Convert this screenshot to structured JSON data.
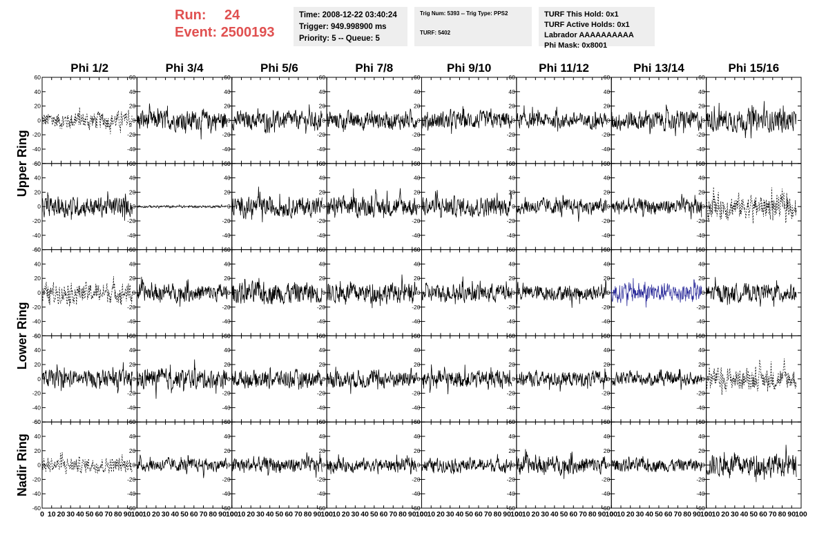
{
  "header": {
    "run_label": "Run:",
    "run_value": "24",
    "event_label": "Event:",
    "event_value": "2500193",
    "time": "Time: 2008-12-22 03:40:24",
    "trigger": "Trigger: 949.998900 ms",
    "priority": "Priority: 5 -- Queue: 5",
    "trig_num": "Trig Num: 5393 -- Trig Type: PPS2",
    "turf": "TURF: 5402",
    "turf_hold": "TURF This Hold: 0x1",
    "turf_active": "TURF Active Holds: 0x1",
    "labrador": "Labrador AAAAAAAAAA",
    "phi_mask": "Phi Mask: 0x8001"
  },
  "colors": {
    "run_text": "#e05050",
    "info_bg": "#eeeeee",
    "trace": "#000000",
    "highlight_trace": "#2b2b9a"
  },
  "chart_data": {
    "type": "line",
    "columns": [
      "Phi 1/2",
      "Phi 3/4",
      "Phi 5/6",
      "Phi 7/8",
      "Phi 9/10",
      "Phi 11/12",
      "Phi 13/14",
      "Phi 15/16"
    ],
    "ring_labels": [
      "Upper Ring",
      "Lower Ring",
      "Nadir Ring"
    ],
    "rows": 5,
    "ylim": [
      -60,
      60
    ],
    "yticks": [
      "60",
      "40",
      "20",
      "0",
      "-20",
      "-40",
      "-60"
    ],
    "xlim": [
      0,
      100
    ],
    "xticks": [
      "0",
      "10",
      "20",
      "30",
      "40",
      "50",
      "60",
      "70",
      "80",
      "90",
      "100"
    ],
    "panel_amplitude": [
      [
        16,
        18,
        16,
        16,
        16,
        14,
        18,
        20
      ],
      [
        18,
        2,
        18,
        18,
        18,
        14,
        14,
        22
      ],
      [
        18,
        16,
        20,
        18,
        16,
        14,
        18,
        16
      ],
      [
        16,
        18,
        16,
        16,
        16,
        14,
        12,
        20
      ],
      [
        14,
        12,
        14,
        12,
        12,
        16,
        12,
        20
      ]
    ],
    "dashed_panels": [
      [
        0,
        0
      ],
      [
        1,
        7
      ],
      [
        2,
        0
      ],
      [
        3,
        7
      ],
      [
        4,
        0
      ]
    ],
    "highlight_panels": [
      [
        2,
        6
      ]
    ],
    "note": "Waveform samples are not legible in the figure; traces are drawn as noise-like signals with approximate amplitudes in ADC units."
  }
}
